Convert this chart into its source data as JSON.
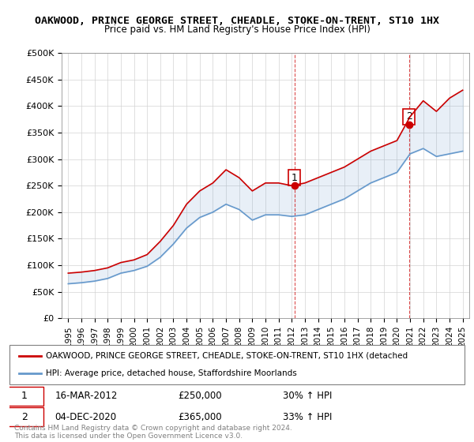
{
  "title": "OAKWOOD, PRINCE GEORGE STREET, CHEADLE, STOKE-ON-TRENT, ST10 1HX",
  "subtitle": "Price paid vs. HM Land Registry's House Price Index (HPI)",
  "legend_red": "OAKWOOD, PRINCE GEORGE STREET, CHEADLE, STOKE-ON-TRENT, ST10 1HX (detached",
  "legend_blue": "HPI: Average price, detached house, Staffordshire Moorlands",
  "footer": "Contains HM Land Registry data © Crown copyright and database right 2024.\nThis data is licensed under the Open Government Licence v3.0.",
  "sale1_date": "16-MAR-2012",
  "sale1_price": "£250,000",
  "sale1_hpi": "30% ↑ HPI",
  "sale2_date": "04-DEC-2020",
  "sale2_price": "£365,000",
  "sale2_hpi": "33% ↑ HPI",
  "ylim": [
    0,
    500000
  ],
  "yticks": [
    0,
    50000,
    100000,
    150000,
    200000,
    250000,
    300000,
    350000,
    400000,
    450000,
    500000
  ],
  "ytick_labels": [
    "£0",
    "£50K",
    "£100K",
    "£150K",
    "£200K",
    "£250K",
    "£300K",
    "£350K",
    "£400K",
    "£450K",
    "£500K"
  ],
  "xlim_start": 1994.5,
  "xlim_end": 2025.5,
  "red_color": "#cc0000",
  "blue_color": "#6699cc",
  "sale1_year": 2012.2,
  "sale1_value": 250000,
  "sale2_year": 2020.92,
  "sale2_value": 365000,
  "hpi_index_years": [
    1995,
    1996,
    1997,
    1998,
    1999,
    2000,
    2001,
    2002,
    2003,
    2004,
    2005,
    2006,
    2007,
    2008,
    2009,
    2010,
    2011,
    2012,
    2013,
    2014,
    2015,
    2016,
    2017,
    2018,
    2019,
    2020,
    2021,
    2022,
    2023,
    2024,
    2025
  ],
  "hpi_red_values": [
    85000,
    87000,
    90000,
    95000,
    105000,
    110000,
    120000,
    145000,
    175000,
    215000,
    240000,
    255000,
    280000,
    265000,
    240000,
    255000,
    255000,
    250000,
    255000,
    265000,
    275000,
    285000,
    300000,
    315000,
    325000,
    335000,
    380000,
    410000,
    390000,
    415000,
    430000
  ],
  "hpi_blue_values": [
    65000,
    67000,
    70000,
    75000,
    85000,
    90000,
    98000,
    115000,
    140000,
    170000,
    190000,
    200000,
    215000,
    205000,
    185000,
    195000,
    195000,
    192000,
    195000,
    205000,
    215000,
    225000,
    240000,
    255000,
    265000,
    275000,
    310000,
    320000,
    305000,
    310000,
    315000
  ]
}
